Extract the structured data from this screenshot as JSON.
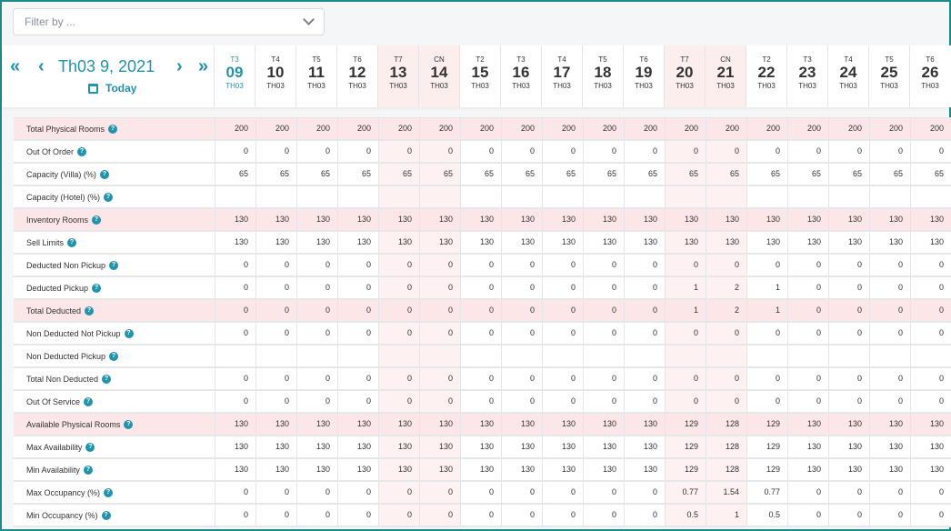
{
  "filter": {
    "placeholder": "Filter by ..."
  },
  "nav": {
    "first": "«",
    "prev": "‹",
    "title": "Th03 9, 2021",
    "next": "›",
    "last": "»",
    "today": "Today"
  },
  "days": [
    {
      "dow": "T3",
      "num": "09",
      "mon": "TH03",
      "current": true
    },
    {
      "dow": "T4",
      "num": "10",
      "mon": "TH03"
    },
    {
      "dow": "T5",
      "num": "11",
      "mon": "TH03"
    },
    {
      "dow": "T6",
      "num": "12",
      "mon": "TH03"
    },
    {
      "dow": "T7",
      "num": "13",
      "mon": "TH03",
      "weekend": true
    },
    {
      "dow": "CN",
      "num": "14",
      "mon": "TH03",
      "weekend": true
    },
    {
      "dow": "T2",
      "num": "15",
      "mon": "TH03"
    },
    {
      "dow": "T3",
      "num": "16",
      "mon": "TH03"
    },
    {
      "dow": "T4",
      "num": "17",
      "mon": "TH03"
    },
    {
      "dow": "T5",
      "num": "18",
      "mon": "TH03"
    },
    {
      "dow": "T6",
      "num": "19",
      "mon": "TH03"
    },
    {
      "dow": "T7",
      "num": "20",
      "mon": "TH03",
      "weekend": true
    },
    {
      "dow": "CN",
      "num": "21",
      "mon": "TH03",
      "weekend": true
    },
    {
      "dow": "T2",
      "num": "22",
      "mon": "TH03"
    },
    {
      "dow": "T3",
      "num": "23",
      "mon": "TH03"
    },
    {
      "dow": "T4",
      "num": "24",
      "mon": "TH03"
    },
    {
      "dow": "T5",
      "num": "25",
      "mon": "TH03"
    },
    {
      "dow": "T6",
      "num": "26",
      "mon": "TH03"
    }
  ],
  "rows": [
    {
      "label": "Total Physical Rooms",
      "highlight": true,
      "values": [
        "200",
        "200",
        "200",
        "200",
        "200",
        "200",
        "200",
        "200",
        "200",
        "200",
        "200",
        "200",
        "200",
        "200",
        "200",
        "200",
        "200",
        "200"
      ]
    },
    {
      "label": "Out Of Order",
      "values": [
        "0",
        "0",
        "0",
        "0",
        "0",
        "0",
        "0",
        "0",
        "0",
        "0",
        "0",
        "0",
        "0",
        "0",
        "0",
        "0",
        "0",
        "0"
      ]
    },
    {
      "label": "Capacity (Villa) (%)",
      "values": [
        "65",
        "65",
        "65",
        "65",
        "65",
        "65",
        "65",
        "65",
        "65",
        "65",
        "65",
        "65",
        "65",
        "65",
        "65",
        "65",
        "65",
        "65"
      ]
    },
    {
      "label": "Capacity (Hotel) (%)",
      "values": [
        "",
        "",
        "",
        "",
        "",
        "",
        "",
        "",
        "",
        "",
        "",
        "",
        "",
        "",
        "",
        "",
        "",
        ""
      ]
    },
    {
      "label": "Inventory Rooms",
      "highlight": true,
      "values": [
        "130",
        "130",
        "130",
        "130",
        "130",
        "130",
        "130",
        "130",
        "130",
        "130",
        "130",
        "130",
        "130",
        "130",
        "130",
        "130",
        "130",
        "130"
      ]
    },
    {
      "label": "Sell Limits",
      "values": [
        "130",
        "130",
        "130",
        "130",
        "130",
        "130",
        "130",
        "130",
        "130",
        "130",
        "130",
        "130",
        "130",
        "130",
        "130",
        "130",
        "130",
        "130"
      ]
    },
    {
      "label": "Deducted Non Pickup",
      "values": [
        "0",
        "0",
        "0",
        "0",
        "0",
        "0",
        "0",
        "0",
        "0",
        "0",
        "0",
        "0",
        "0",
        "0",
        "0",
        "0",
        "0",
        "0"
      ]
    },
    {
      "label": "Deducted Pickup",
      "values": [
        "0",
        "0",
        "0",
        "0",
        "0",
        "0",
        "0",
        "0",
        "0",
        "0",
        "0",
        "1",
        "2",
        "1",
        "0",
        "0",
        "0",
        "0"
      ]
    },
    {
      "label": "Total Deducted",
      "highlight": true,
      "values": [
        "0",
        "0",
        "0",
        "0",
        "0",
        "0",
        "0",
        "0",
        "0",
        "0",
        "0",
        "1",
        "2",
        "1",
        "0",
        "0",
        "0",
        "0"
      ]
    },
    {
      "label": "Non Deducted Not Pickup",
      "values": [
        "0",
        "0",
        "0",
        "0",
        "0",
        "0",
        "0",
        "0",
        "0",
        "0",
        "0",
        "0",
        "0",
        "0",
        "0",
        "0",
        "0",
        "0"
      ]
    },
    {
      "label": "Non Deducted Pickup",
      "values": [
        "",
        "",
        "",
        "",
        "",
        "",
        "",
        "",
        "",
        "",
        "",
        "",
        "",
        "",
        "",
        "",
        "",
        ""
      ]
    },
    {
      "label": "Total Non Deducted",
      "values": [
        "0",
        "0",
        "0",
        "0",
        "0",
        "0",
        "0",
        "0",
        "0",
        "0",
        "0",
        "0",
        "0",
        "0",
        "0",
        "0",
        "0",
        "0"
      ]
    },
    {
      "label": "Out Of Service",
      "values": [
        "0",
        "0",
        "0",
        "0",
        "0",
        "0",
        "0",
        "0",
        "0",
        "0",
        "0",
        "0",
        "0",
        "0",
        "0",
        "0",
        "0",
        "0"
      ]
    },
    {
      "label": "Available Physical Rooms",
      "highlight": true,
      "values": [
        "130",
        "130",
        "130",
        "130",
        "130",
        "130",
        "130",
        "130",
        "130",
        "130",
        "130",
        "129",
        "128",
        "129",
        "130",
        "130",
        "130",
        "130"
      ]
    },
    {
      "label": "Max Availability",
      "values": [
        "130",
        "130",
        "130",
        "130",
        "130",
        "130",
        "130",
        "130",
        "130",
        "130",
        "130",
        "129",
        "128",
        "129",
        "130",
        "130",
        "130",
        "130"
      ]
    },
    {
      "label": "Min Availability",
      "values": [
        "130",
        "130",
        "130",
        "130",
        "130",
        "130",
        "130",
        "130",
        "130",
        "130",
        "130",
        "129",
        "128",
        "129",
        "130",
        "130",
        "130",
        "130"
      ]
    },
    {
      "label": "Max Occupancy (%)",
      "values": [
        "0",
        "0",
        "0",
        "0",
        "0",
        "0",
        "0",
        "0",
        "0",
        "0",
        "0",
        "0.77",
        "1.54",
        "0.77",
        "0",
        "0",
        "0",
        "0"
      ]
    },
    {
      "label": "Min Occupancy (%)",
      "values": [
        "0",
        "0",
        "0",
        "0",
        "0",
        "0",
        "0",
        "0",
        "0",
        "0",
        "0",
        "0.5",
        "1",
        "0.5",
        "0",
        "0",
        "0",
        "0"
      ]
    }
  ],
  "help_glyph": "?",
  "colors": {
    "accent": "#2193ad",
    "highlight_row": "#fde6e7",
    "weekend": "#fdeeee"
  }
}
